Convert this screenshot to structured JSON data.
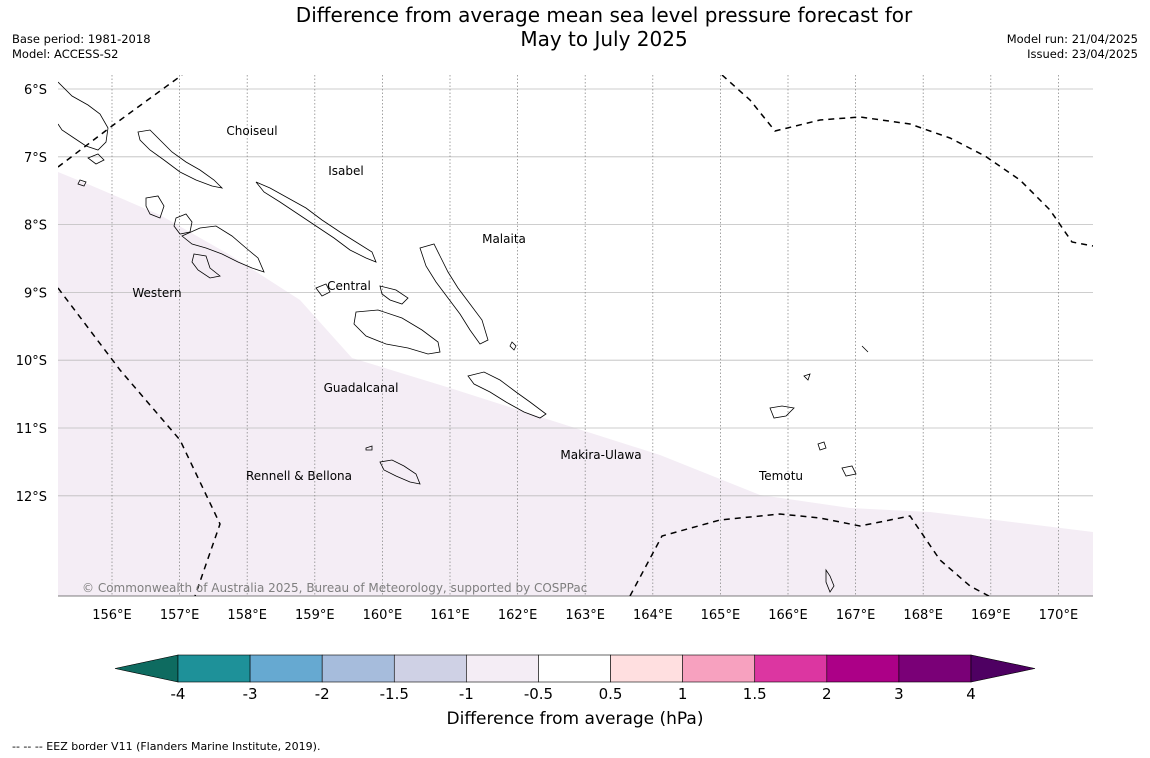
{
  "title": {
    "line1": "Difference from average mean sea level pressure forecast for",
    "line2": "May to July 2025"
  },
  "meta_left": {
    "base_period": "Base period: 1981-2018",
    "model": "Model: ACCESS-S2"
  },
  "meta_right": {
    "model_run": "Model run: 21/04/2025",
    "issued": "Issued: 23/04/2025"
  },
  "map": {
    "lat_labels": [
      "6°S",
      "7°S",
      "8°S",
      "9°S",
      "10°S",
      "11°S",
      "12°S"
    ],
    "lon_labels": [
      "156°E",
      "157°E",
      "158°E",
      "159°E",
      "160°E",
      "161°E",
      "162°E",
      "163°E",
      "164°E",
      "165°E",
      "166°E",
      "167°E",
      "168°E",
      "169°E",
      "170°E"
    ],
    "province_labels": [
      "Choiseul",
      "Isabel",
      "Malaita",
      "Western",
      "Central",
      "Guadalcanal",
      "Makira-Ulawa",
      "Temotu",
      "Rennell & Bellona"
    ],
    "copyright": "© Commonwealth of Australia 2025, Bureau of Meteorology, supported by COSPPac",
    "shading_color": "#f4edf5"
  },
  "colorbar": {
    "ticks": [
      "-4",
      "-3",
      "-2",
      "-1.5",
      "-1",
      "-0.5",
      "0.5",
      "1",
      "1.5",
      "2",
      "3",
      "4"
    ],
    "colors": [
      "#0e6b60",
      "#1e9199",
      "#66a9d1",
      "#a6bcdc",
      "#cfd1e5",
      "#f4edf5",
      "#ffffff",
      "#ffdfe0",
      "#f7a1bf",
      "#dc36a1",
      "#ac0087",
      "#7a0077",
      "#4e0062"
    ],
    "label": "Difference from average (hPa)"
  },
  "footer": "-- -- -- EEZ border V11 (Flanders Marine Institute, 2019)."
}
